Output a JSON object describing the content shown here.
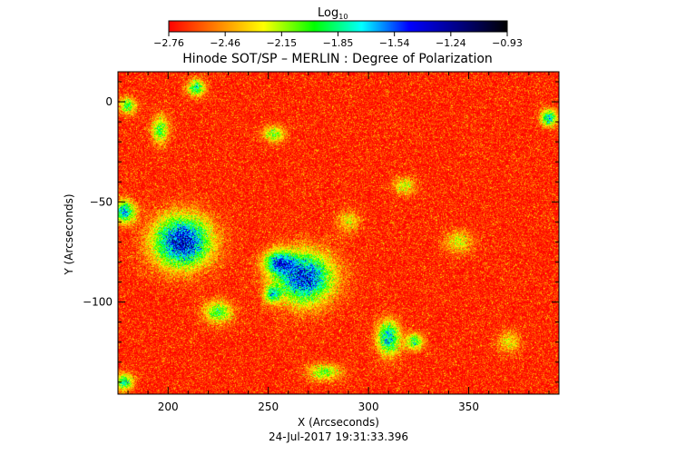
{
  "chart_data": {
    "type": "heatmap",
    "title": "Hinode SOT/SP – MERLIN : Degree of Polarization",
    "xlabel": "X (Arcseconds)",
    "ylabel": "Y (Arcseconds)",
    "footer": "24-Jul-2017 19:31:33.396",
    "xlim": [
      175,
      395
    ],
    "ylim": [
      -146,
      15
    ],
    "x_ticks": [
      200,
      250,
      300,
      350
    ],
    "y_ticks": [
      0,
      -50,
      -100
    ],
    "x_tick_labels": [
      "200",
      "250",
      "300",
      "350"
    ],
    "y_tick_labels": [
      "0",
      "−50",
      "−100"
    ],
    "colorbar": {
      "label_main": "Log",
      "label_sub": "10",
      "range": [
        -2.76,
        -0.93
      ],
      "tick_labels": [
        "−2.76",
        "−2.46",
        "−2.15",
        "−1.85",
        "−1.54",
        "−1.24",
        "−0.93"
      ],
      "colors": [
        "#ff0000",
        "#ff7f00",
        "#ffff00",
        "#00ff00",
        "#00ffff",
        "#0000ff",
        "#000080",
        "#000000"
      ]
    },
    "background_level": -2.7,
    "features": [
      {
        "x": 207,
        "y": -70,
        "sx": 10,
        "sy": 9,
        "amp": 1.35
      },
      {
        "x": 268,
        "y": -88,
        "sx": 10,
        "sy": 9,
        "amp": 1.25
      },
      {
        "x": 255,
        "y": -80,
        "sx": 5,
        "sy": 4,
        "amp": 0.9
      },
      {
        "x": 310,
        "y": -118,
        "sx": 4,
        "sy": 6,
        "amp": 1.0
      },
      {
        "x": 178,
        "y": -55,
        "sx": 4,
        "sy": 4,
        "amp": 1.0
      },
      {
        "x": 214,
        "y": 7,
        "sx": 3,
        "sy": 3,
        "amp": 0.85
      },
      {
        "x": 196,
        "y": -14,
        "sx": 3,
        "sy": 5,
        "amp": 0.7
      },
      {
        "x": 253,
        "y": -16,
        "sx": 4,
        "sy": 3,
        "amp": 0.6
      },
      {
        "x": 390,
        "y": -8,
        "sx": 3,
        "sy": 3,
        "amp": 0.9
      },
      {
        "x": 225,
        "y": -105,
        "sx": 5,
        "sy": 4,
        "amp": 0.7
      },
      {
        "x": 278,
        "y": -135,
        "sx": 6,
        "sy": 3,
        "amp": 0.6
      },
      {
        "x": 323,
        "y": -120,
        "sx": 3,
        "sy": 3,
        "amp": 0.75
      },
      {
        "x": 252,
        "y": -96,
        "sx": 3,
        "sy": 3,
        "amp": 0.7
      },
      {
        "x": 178,
        "y": -140,
        "sx": 3,
        "sy": 3,
        "amp": 0.85
      },
      {
        "x": 318,
        "y": -42,
        "sx": 4,
        "sy": 3,
        "amp": 0.5
      },
      {
        "x": 345,
        "y": -70,
        "sx": 5,
        "sy": 4,
        "amp": 0.45
      },
      {
        "x": 180,
        "y": -2,
        "sx": 3,
        "sy": 3,
        "amp": 0.7
      },
      {
        "x": 370,
        "y": -120,
        "sx": 4,
        "sy": 4,
        "amp": 0.4
      },
      {
        "x": 290,
        "y": -60,
        "sx": 4,
        "sy": 4,
        "amp": 0.4
      }
    ]
  }
}
